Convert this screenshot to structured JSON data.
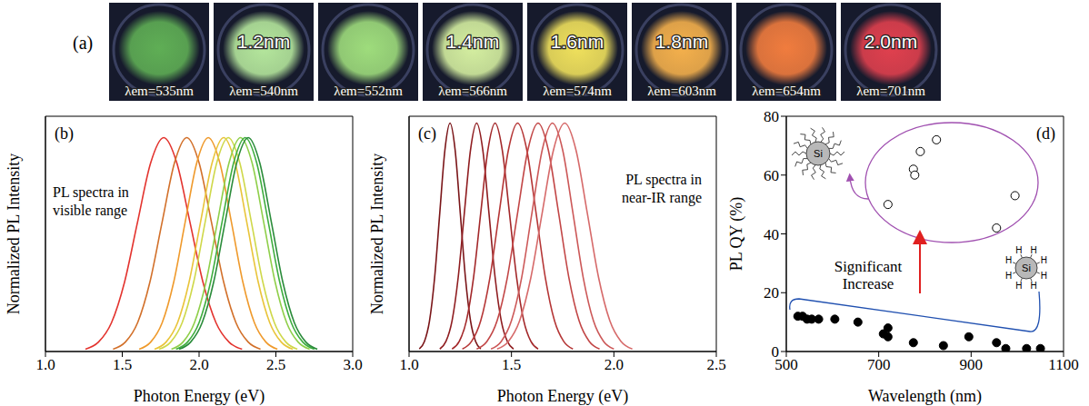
{
  "panel_a": {
    "label": "(a)",
    "photos": [
      {
        "emission": "λem=535nm",
        "color": "#5fae55"
      },
      {
        "size": "1.2nm",
        "emission": "λem=540nm",
        "color": "#b4e69c"
      },
      {
        "emission": "λem=552nm",
        "color": "#9edc7c"
      },
      {
        "size": "1.4nm",
        "emission": "λem=566nm",
        "color": "#d4eea0"
      },
      {
        "size": "1.6nm",
        "emission": "λem=574nm",
        "color": "#efe05c"
      },
      {
        "size": "1.8nm",
        "emission": "λem=603nm",
        "color": "#f4b04c"
      },
      {
        "emission": "λem=654nm",
        "color": "#f07c3e"
      },
      {
        "size": "2.0nm",
        "emission": "λem=701nm",
        "color": "#e0404e"
      }
    ]
  },
  "chart_data": [
    {
      "type": "line",
      "title": "(b)",
      "annotation": "PL spectra in visible range",
      "xlabel": "Photon Energy (eV)",
      "ylabel": "Normalized PL Intensity",
      "xlim": [
        1.0,
        3.0
      ],
      "xticks": [
        {
          "value": 1.0,
          "label": "1.0"
        },
        {
          "value": 1.5,
          "label": "1.5"
        },
        {
          "value": 2.0,
          "label": "2.0"
        },
        {
          "value": 2.5,
          "label": "2.5"
        },
        {
          "value": 3.0,
          "label": "3.0"
        }
      ],
      "ylim": [
        0,
        1.1
      ],
      "tick_labels": "x",
      "series": [
        {
          "color": "#e3342f",
          "x": [
            1.26,
            1.345,
            1.43,
            1.515,
            1.6,
            1.685,
            1.77,
            1.855,
            1.94,
            2.025,
            2.11,
            2.195,
            2.28
          ],
          "values": [
            0.011,
            0.044,
            0.135,
            0.325,
            0.607,
            0.882,
            1,
            0.882,
            0.607,
            0.325,
            0.135,
            0.044,
            0.011
          ]
        },
        {
          "color": "#d2702a",
          "x": [
            1.44,
            1.52,
            1.6,
            1.68,
            1.76,
            1.84,
            1.92,
            2.0,
            2.08,
            2.16,
            2.24,
            2.32,
            2.4
          ],
          "values": [
            0.011,
            0.044,
            0.135,
            0.325,
            0.607,
            0.882,
            1,
            0.882,
            0.607,
            0.325,
            0.135,
            0.044,
            0.011
          ]
        },
        {
          "color": "#ef9a2c",
          "x": [
            1.61,
            1.685,
            1.76,
            1.835,
            1.91,
            1.985,
            2.06,
            2.135,
            2.21,
            2.285,
            2.36,
            2.435,
            2.51
          ],
          "values": [
            0.011,
            0.044,
            0.135,
            0.325,
            0.607,
            0.882,
            1,
            0.882,
            0.607,
            0.325,
            0.135,
            0.044,
            0.011
          ]
        },
        {
          "color": "#e9c43a",
          "x": [
            1.71,
            1.785,
            1.86,
            1.935,
            2.01,
            2.085,
            2.16,
            2.235,
            2.31,
            2.385,
            2.46,
            2.535,
            2.61
          ],
          "values": [
            0.011,
            0.044,
            0.135,
            0.325,
            0.607,
            0.882,
            1,
            0.882,
            0.607,
            0.325,
            0.135,
            0.044,
            0.011
          ]
        },
        {
          "color": "#cfd84a",
          "x": [
            1.74,
            1.815,
            1.89,
            1.965,
            2.04,
            2.115,
            2.19,
            2.265,
            2.34,
            2.415,
            2.49,
            2.565,
            2.64
          ],
          "values": [
            0.011,
            0.044,
            0.135,
            0.325,
            0.607,
            0.882,
            1,
            0.882,
            0.607,
            0.325,
            0.135,
            0.044,
            0.011
          ]
        },
        {
          "color": "#8fcf4a",
          "x": [
            1.82,
            1.895,
            1.97,
            2.045,
            2.12,
            2.195,
            2.27,
            2.345,
            2.42,
            2.495,
            2.57,
            2.645,
            2.72
          ],
          "values": [
            0.011,
            0.044,
            0.135,
            0.325,
            0.607,
            0.882,
            1,
            0.882,
            0.607,
            0.325,
            0.135,
            0.044,
            0.011
          ]
        },
        {
          "color": "#3fae3f",
          "x": [
            1.85,
            1.925,
            2.0,
            2.075,
            2.15,
            2.225,
            2.3,
            2.375,
            2.45,
            2.525,
            2.6,
            2.675,
            2.75
          ],
          "values": [
            0.011,
            0.044,
            0.135,
            0.325,
            0.607,
            0.882,
            1,
            0.882,
            0.607,
            0.325,
            0.135,
            0.044,
            0.011
          ]
        },
        {
          "color": "#2b8c3b",
          "x": [
            1.87,
            1.945,
            2.02,
            2.095,
            2.17,
            2.245,
            2.32,
            2.395,
            2.47,
            2.545,
            2.62,
            2.695,
            2.77
          ],
          "values": [
            0.011,
            0.044,
            0.135,
            0.325,
            0.607,
            0.882,
            1,
            0.882,
            0.607,
            0.325,
            0.135,
            0.044,
            0.011
          ]
        }
      ]
    },
    {
      "type": "line",
      "title": "(c)",
      "annotation": "PL spectra in near-IR range",
      "xlabel": "Photon Energy (eV)",
      "ylabel": "Normalized PL Intensity",
      "xlim": [
        1.0,
        2.5
      ],
      "xticks": [
        {
          "value": 1.0,
          "label": "1.0"
        },
        {
          "value": 1.5,
          "label": "1.5"
        },
        {
          "value": 2.0,
          "label": "2.0"
        },
        {
          "value": 2.5,
          "label": "2.5"
        }
      ],
      "ylim": [
        0,
        1.03
      ],
      "tick_labels": "x",
      "series": [
        {
          "color": "#7a1518",
          "x": [
            1.05,
            1.075,
            1.1,
            1.125,
            1.15,
            1.175,
            1.2,
            1.225,
            1.25,
            1.275,
            1.3,
            1.325,
            1.35
          ],
          "values": [
            0.011,
            0.044,
            0.135,
            0.325,
            0.607,
            0.882,
            1,
            0.882,
            0.607,
            0.325,
            0.135,
            0.044,
            0.011
          ]
        },
        {
          "color": "#8f1d20",
          "x": [
            1.15,
            1.18,
            1.21,
            1.24,
            1.27,
            1.3,
            1.33,
            1.36,
            1.39,
            1.42,
            1.45,
            1.48,
            1.51
          ],
          "values": [
            0.011,
            0.044,
            0.135,
            0.325,
            0.607,
            0.882,
            1,
            0.882,
            0.607,
            0.325,
            0.135,
            0.044,
            0.011
          ]
        },
        {
          "color": "#a3282a",
          "x": [
            1.21,
            1.245,
            1.28,
            1.315,
            1.35,
            1.385,
            1.42,
            1.455,
            1.49,
            1.525,
            1.56,
            1.595,
            1.63
          ],
          "values": [
            0.011,
            0.044,
            0.135,
            0.325,
            0.607,
            0.882,
            1,
            0.882,
            0.607,
            0.325,
            0.135,
            0.044,
            0.011
          ]
        },
        {
          "color": "#b53636",
          "x": [
            1.26,
            1.305,
            1.35,
            1.395,
            1.44,
            1.485,
            1.53,
            1.575,
            1.62,
            1.665,
            1.71,
            1.755,
            1.8
          ],
          "values": [
            0.011,
            0.044,
            0.135,
            0.325,
            0.607,
            0.882,
            1,
            0.882,
            0.607,
            0.325,
            0.135,
            0.044,
            0.011
          ]
        },
        {
          "color": "#c24646",
          "x": [
            1.33,
            1.38,
            1.43,
            1.48,
            1.53,
            1.58,
            1.63,
            1.68,
            1.73,
            1.78,
            1.83,
            1.88,
            1.93
          ],
          "values": [
            0.011,
            0.044,
            0.135,
            0.325,
            0.607,
            0.882,
            1,
            0.882,
            0.607,
            0.325,
            0.135,
            0.044,
            0.011
          ]
        },
        {
          "color": "#cc5858",
          "x": [
            1.4,
            1.45,
            1.5,
            1.55,
            1.6,
            1.65,
            1.7,
            1.75,
            1.8,
            1.85,
            1.9,
            1.95,
            2.0
          ],
          "values": [
            0.011,
            0.044,
            0.135,
            0.325,
            0.607,
            0.882,
            1,
            0.882,
            0.607,
            0.325,
            0.135,
            0.044,
            0.011
          ]
        },
        {
          "color": "#d66a6a",
          "x": [
            1.43,
            1.485,
            1.54,
            1.595,
            1.65,
            1.705,
            1.76,
            1.815,
            1.87,
            1.925,
            1.98,
            2.035,
            2.09
          ],
          "values": [
            0.011,
            0.044,
            0.135,
            0.325,
            0.607,
            0.882,
            1,
            0.882,
            0.607,
            0.325,
            0.135,
            0.044,
            0.011
          ]
        }
      ]
    },
    {
      "type": "scatter",
      "title": "(d)",
      "annotation": "Significant Increase",
      "icon_labels": {
        "core": "Si",
        "ligand": "H"
      },
      "xlabel": "Wavelength (nm)",
      "ylabel": "PL QY (%)",
      "xlim": [
        500,
        1100
      ],
      "xticks": [
        500,
        700,
        900,
        1100
      ],
      "ylim": [
        0,
        80
      ],
      "yticks": [
        0,
        20,
        40,
        60,
        80
      ],
      "series": [
        {
          "marker": "open_circle",
          "color": "#000000",
          "x": [
            720,
            775,
            778,
            790,
            825,
            955,
            995
          ],
          "values": [
            50,
            62,
            60,
            68,
            72,
            42,
            53
          ]
        },
        {
          "marker": "filled_circle",
          "color": "#000000",
          "x": [
            525,
            535,
            545,
            555,
            570,
            605,
            655,
            710,
            720,
            720,
            775,
            840,
            895,
            955,
            975,
            1020,
            1050
          ],
          "values": [
            12,
            12,
            11,
            11,
            11,
            11,
            10,
            6,
            5,
            8,
            3,
            2,
            5,
            3,
            1,
            1,
            1
          ]
        }
      ]
    }
  ]
}
